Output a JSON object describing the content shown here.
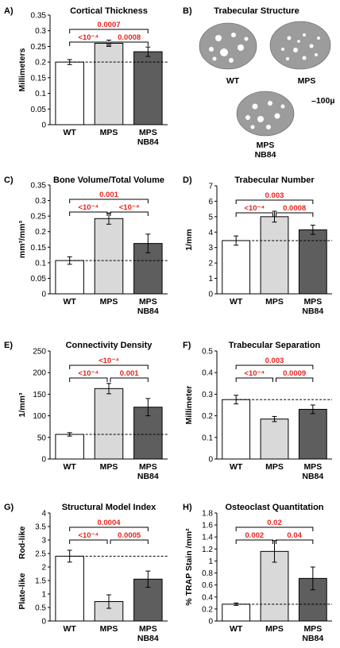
{
  "chart_data": [
    {
      "letter": "A)",
      "type": "bar",
      "title": "Cortical Thickness",
      "ylabel": "Millimeters",
      "ylim": [
        0,
        0.35
      ],
      "ticks": [
        "0",
        "0.05",
        "0.1",
        "0.15",
        "0.2",
        "0.25",
        "0.3",
        "0.35"
      ],
      "categories": [
        "WT",
        "MPS",
        "MPS\nNB84"
      ],
      "values": [
        0.2,
        0.26,
        0.233
      ],
      "errors": [
        0.008,
        0.01,
        0.015
      ],
      "reference": 0.2,
      "comparisons": [
        {
          "from": 0,
          "to": 2,
          "label": "0.0007"
        },
        {
          "from": 0,
          "to": 1,
          "label": "<10⁻⁴"
        },
        {
          "from": 1,
          "to": 2,
          "label": "0.0008"
        }
      ]
    },
    {
      "letter": "C)",
      "type": "bar",
      "title": "Bone Volume/Total Volume",
      "ylabel": "mm³/mm³",
      "ylim": [
        0,
        0.35
      ],
      "ticks": [
        "0",
        "0.05",
        "0.1",
        "0.15",
        "0.2",
        "0.25",
        "0.3",
        "0.35"
      ],
      "categories": [
        "WT",
        "MPS",
        "MPS\nNB84"
      ],
      "values": [
        0.107,
        0.242,
        0.162
      ],
      "errors": [
        0.012,
        0.018,
        0.03
      ],
      "reference": 0.107,
      "comparisons": [
        {
          "from": 0,
          "to": 2,
          "label": "0.001"
        },
        {
          "from": 0,
          "to": 1,
          "label": "<10⁻⁴"
        },
        {
          "from": 1,
          "to": 2,
          "label": "<10⁻⁴"
        }
      ]
    },
    {
      "letter": "D)",
      "type": "bar",
      "title": "Trabecular Number",
      "ylabel": "1/mm",
      "ylim": [
        0,
        7
      ],
      "ticks": [
        "0",
        "1",
        "2",
        "3",
        "4",
        "5",
        "6",
        "7"
      ],
      "categories": [
        "WT",
        "MPS",
        "MPS\nNB84"
      ],
      "values": [
        3.45,
        5.0,
        4.15
      ],
      "errors": [
        0.3,
        0.35,
        0.3
      ],
      "reference": 3.45,
      "comparisons": [
        {
          "from": 0,
          "to": 2,
          "label": "0.003"
        },
        {
          "from": 0,
          "to": 1,
          "label": "<10⁻⁴"
        },
        {
          "from": 1,
          "to": 2,
          "label": "0.0008"
        }
      ]
    },
    {
      "letter": "E)",
      "type": "bar",
      "title": "Connectivity Density",
      "ylabel": "1/mm³",
      "ylim": [
        0,
        250
      ],
      "ticks": [
        "0",
        "50",
        "100",
        "150",
        "200",
        "250"
      ],
      "categories": [
        "WT",
        "MPS",
        "MPS\nNB84"
      ],
      "values": [
        57,
        163,
        120
      ],
      "errors": [
        4,
        12,
        20
      ],
      "reference": 57,
      "comparisons": [
        {
          "from": 0,
          "to": 2,
          "label": "<10⁻⁴"
        },
        {
          "from": 0,
          "to": 1,
          "label": "<10⁻⁴"
        },
        {
          "from": 1,
          "to": 2,
          "label": "0.001"
        }
      ]
    },
    {
      "letter": "F)",
      "type": "bar",
      "title": "Trabecular Separation",
      "ylabel": "Millimeter",
      "ylim": [
        0,
        0.5
      ],
      "ticks": [
        "0",
        "0.1",
        "0.2",
        "0.3",
        "0.4",
        "0.5"
      ],
      "categories": [
        "WT",
        "MPS",
        "MPS\nNB84"
      ],
      "values": [
        0.275,
        0.185,
        0.23
      ],
      "errors": [
        0.02,
        0.012,
        0.02
      ],
      "reference": 0.275,
      "comparisons": [
        {
          "from": 0,
          "to": 2,
          "label": "0.003"
        },
        {
          "from": 0,
          "to": 1,
          "label": "<10⁻⁴"
        },
        {
          "from": 1,
          "to": 2,
          "label": "0.0009"
        }
      ]
    },
    {
      "letter": "G)",
      "type": "bar",
      "title": "Structural Model Index",
      "ylabel": "",
      "side_labels": [
        "Rod-like",
        "Plate-like"
      ],
      "ylim": [
        0,
        4
      ],
      "ticks": [
        "0",
        "0.5",
        "1",
        "1.5",
        "2",
        "2.5",
        "3",
        "3.5",
        "4"
      ],
      "categories": [
        "WT",
        "MPS",
        "MPS\nNB84"
      ],
      "values": [
        2.4,
        0.72,
        1.55
      ],
      "errors": [
        0.22,
        0.25,
        0.3
      ],
      "reference": 2.4,
      "comparisons": [
        {
          "from": 0,
          "to": 2,
          "label": "0.0004"
        },
        {
          "from": 0,
          "to": 1,
          "label": "<10⁻⁴"
        },
        {
          "from": 1,
          "to": 2,
          "label": "0.0005"
        }
      ]
    },
    {
      "letter": "H)",
      "type": "bar",
      "title": "Osteoclast Quantitation",
      "ylabel": "% TRAP Stain /mm²",
      "ylim": [
        0,
        1.8
      ],
      "ticks": [
        "0",
        "0.2",
        "0.4",
        "0.6",
        "0.8",
        "1",
        "1.2",
        "1.4",
        "1.6",
        "1.8"
      ],
      "categories": [
        "WT",
        "MPS",
        "MPS\nNB84"
      ],
      "values": [
        0.28,
        1.16,
        0.71
      ],
      "errors": [
        0.02,
        0.18,
        0.19
      ],
      "reference": 0.28,
      "comparisons": [
        {
          "from": 0,
          "to": 2,
          "label": "0.02"
        },
        {
          "from": 0,
          "to": 1,
          "label": "0.002"
        },
        {
          "from": 1,
          "to": 2,
          "label": "0.04"
        }
      ]
    }
  ],
  "panel_b": {
    "letter": "B)",
    "title": "Trabecular Structure",
    "labels": [
      "WT",
      "MPS",
      "MPS\nNB84"
    ],
    "scale": "–100µ"
  },
  "colors": {
    "wt": "#ffffff",
    "mps": "#d9d9d9",
    "mps_nb84": "#5e5e5e",
    "pvalue": "#e8231f",
    "bone": "#9c9c9c"
  }
}
